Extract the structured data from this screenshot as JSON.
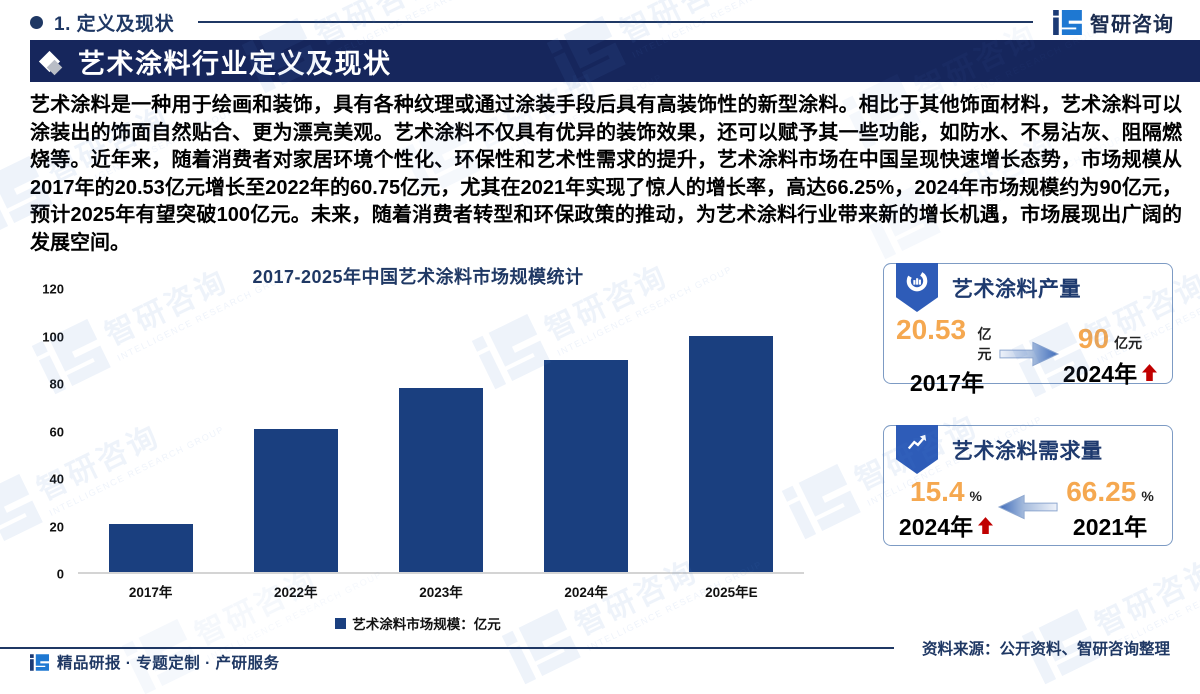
{
  "header": {
    "section_label": "1. 定义及现状",
    "brand_name": "智研咨询",
    "banner_title": "艺术涂料行业定义及现状"
  },
  "body": {
    "paragraph": "艺术涂料是一种用于绘画和装饰，具有各种纹理或通过涂装手段后具有高装饰性的新型涂料。相比于其他饰面材料，艺术涂料可以涂装出的饰面自然贴合、更为漂亮美观。艺术涂料不仅具有优异的装饰效果，还可以赋予其一些功能，如防水、不易沾灰、阻隔燃烧等。近年来，随着消费者对家居环境个性化、环保性和艺术性需求的提升，艺术涂料市场在中国呈现快速增长态势，市场规模从2017年的20.53亿元增长至2022年的60.75亿元，尤其在2021年实现了惊人的增长率，高达66.25%，2024年市场规模约为90亿元，预计2025年有望突破100亿元。未来，随着消费者转型和环保政策的推动，为艺术涂料行业带来新的增长机遇，市场展现出广阔的发展空间。"
  },
  "chart_data": {
    "type": "bar",
    "title": "2017-2025年中国艺术涂料市场规模统计",
    "categories": [
      "2017年",
      "2022年",
      "2023年",
      "2024年",
      "2025年E"
    ],
    "values": [
      20.53,
      60.75,
      78,
      90,
      100
    ],
    "legend": [
      "艺术涂料市场规模：亿元"
    ],
    "xlabel": "",
    "ylabel": "",
    "ylim": [
      0,
      120
    ],
    "yticks": [
      0,
      20,
      40,
      60,
      80,
      100,
      120
    ],
    "grid": false,
    "legend_position": "bottom",
    "bar_color": "#1a3f7f"
  },
  "cards": [
    {
      "title": "艺术涂料产量",
      "left_value": "20.53",
      "left_unit": "亿元",
      "left_year": "2017年",
      "right_value": "90",
      "right_unit": "亿元",
      "right_year": "2024年",
      "arrow_direction": "right",
      "trend": "up"
    },
    {
      "title": "艺术涂料需求量",
      "left_value": "15.4",
      "left_unit": "%",
      "left_year": "2024年",
      "right_value": "66.25",
      "right_unit": "%",
      "right_year": "2021年",
      "arrow_direction": "left",
      "trend": "up"
    }
  ],
  "footer": {
    "services": "精品研报 · 专题定制 · 产研服务",
    "source": "资料来源：公开资料、智研咨询整理"
  },
  "watermark": {
    "text": "智研咨询",
    "subtext": "INTELLIGENCE RESEARCH GROUP"
  },
  "colors": {
    "navy": "#1f3864",
    "banner": "#16265c",
    "bar": "#1a3f7f",
    "royal": "#2e5cb8",
    "orange": "#f5a850",
    "red": "#c00000",
    "logo_blue": "#1e78d2",
    "logo_navy": "#1b3a75"
  }
}
